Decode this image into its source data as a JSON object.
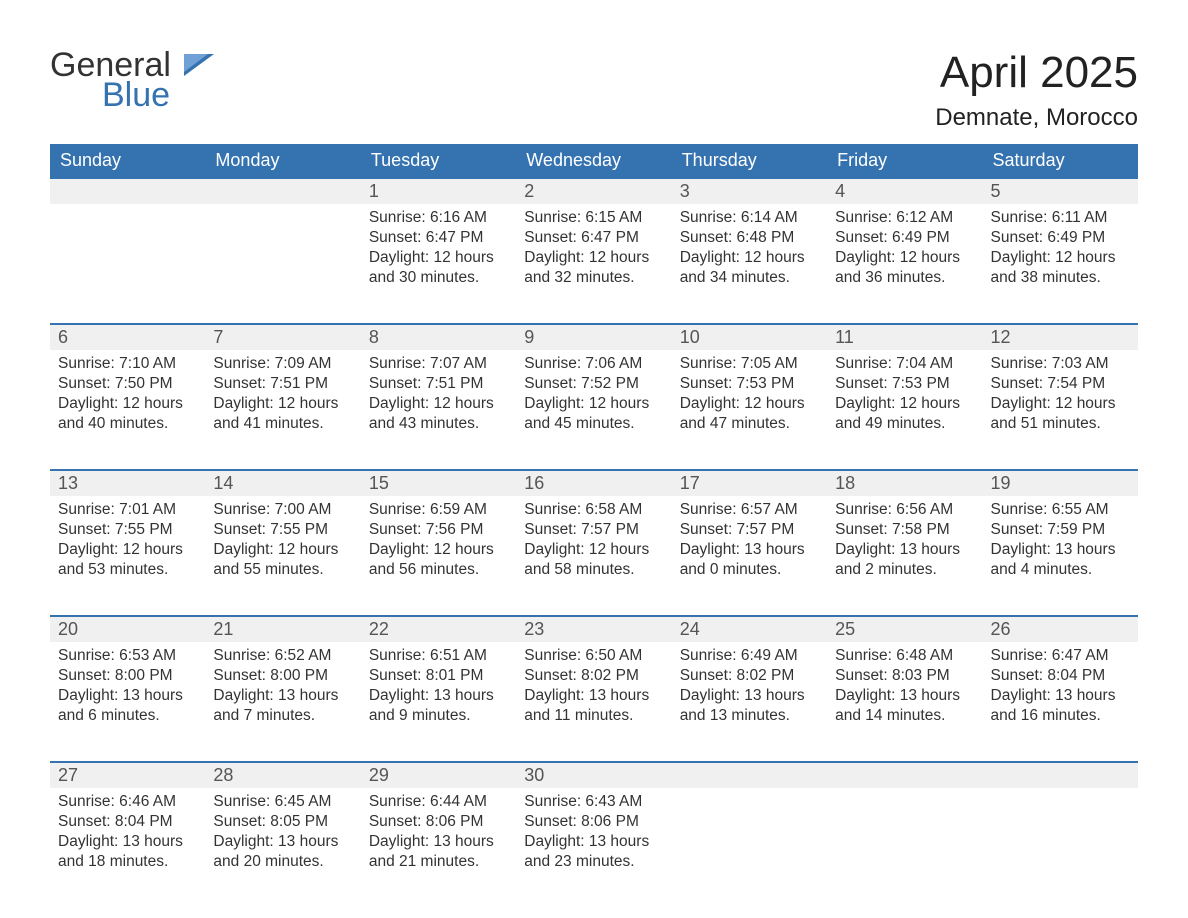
{
  "logo": {
    "word1": "General",
    "word2": "Blue"
  },
  "colors": {
    "brand_blue": "#3572b0",
    "header_bg": "#3572b0",
    "header_text": "#ffffff",
    "daynum_bg": "#f0f0f0",
    "daynum_text": "#555555",
    "body_text": "#333333",
    "page_bg": "#ffffff"
  },
  "typography": {
    "month_title_fontsize": 44,
    "location_fontsize": 24,
    "logo_fontsize": 34,
    "dayheader_fontsize": 18,
    "daynum_fontsize": 18,
    "cell_fontsize": 15.5
  },
  "title": "April 2025",
  "location": "Demnate, Morocco",
  "day_headers": [
    "Sunday",
    "Monday",
    "Tuesday",
    "Wednesday",
    "Thursday",
    "Friday",
    "Saturday"
  ],
  "weeks": [
    [
      null,
      null,
      {
        "day": "1",
        "sunrise": "6:16 AM",
        "sunset": "6:47 PM",
        "daylight": "12 hours and 30 minutes."
      },
      {
        "day": "2",
        "sunrise": "6:15 AM",
        "sunset": "6:47 PM",
        "daylight": "12 hours and 32 minutes."
      },
      {
        "day": "3",
        "sunrise": "6:14 AM",
        "sunset": "6:48 PM",
        "daylight": "12 hours and 34 minutes."
      },
      {
        "day": "4",
        "sunrise": "6:12 AM",
        "sunset": "6:49 PM",
        "daylight": "12 hours and 36 minutes."
      },
      {
        "day": "5",
        "sunrise": "6:11 AM",
        "sunset": "6:49 PM",
        "daylight": "12 hours and 38 minutes."
      }
    ],
    [
      {
        "day": "6",
        "sunrise": "7:10 AM",
        "sunset": "7:50 PM",
        "daylight": "12 hours and 40 minutes."
      },
      {
        "day": "7",
        "sunrise": "7:09 AM",
        "sunset": "7:51 PM",
        "daylight": "12 hours and 41 minutes."
      },
      {
        "day": "8",
        "sunrise": "7:07 AM",
        "sunset": "7:51 PM",
        "daylight": "12 hours and 43 minutes."
      },
      {
        "day": "9",
        "sunrise": "7:06 AM",
        "sunset": "7:52 PM",
        "daylight": "12 hours and 45 minutes."
      },
      {
        "day": "10",
        "sunrise": "7:05 AM",
        "sunset": "7:53 PM",
        "daylight": "12 hours and 47 minutes."
      },
      {
        "day": "11",
        "sunrise": "7:04 AM",
        "sunset": "7:53 PM",
        "daylight": "12 hours and 49 minutes."
      },
      {
        "day": "12",
        "sunrise": "7:03 AM",
        "sunset": "7:54 PM",
        "daylight": "12 hours and 51 minutes."
      }
    ],
    [
      {
        "day": "13",
        "sunrise": "7:01 AM",
        "sunset": "7:55 PM",
        "daylight": "12 hours and 53 minutes."
      },
      {
        "day": "14",
        "sunrise": "7:00 AM",
        "sunset": "7:55 PM",
        "daylight": "12 hours and 55 minutes."
      },
      {
        "day": "15",
        "sunrise": "6:59 AM",
        "sunset": "7:56 PM",
        "daylight": "12 hours and 56 minutes."
      },
      {
        "day": "16",
        "sunrise": "6:58 AM",
        "sunset": "7:57 PM",
        "daylight": "12 hours and 58 minutes."
      },
      {
        "day": "17",
        "sunrise": "6:57 AM",
        "sunset": "7:57 PM",
        "daylight": "13 hours and 0 minutes."
      },
      {
        "day": "18",
        "sunrise": "6:56 AM",
        "sunset": "7:58 PM",
        "daylight": "13 hours and 2 minutes."
      },
      {
        "day": "19",
        "sunrise": "6:55 AM",
        "sunset": "7:59 PM",
        "daylight": "13 hours and 4 minutes."
      }
    ],
    [
      {
        "day": "20",
        "sunrise": "6:53 AM",
        "sunset": "8:00 PM",
        "daylight": "13 hours and 6 minutes."
      },
      {
        "day": "21",
        "sunrise": "6:52 AM",
        "sunset": "8:00 PM",
        "daylight": "13 hours and 7 minutes."
      },
      {
        "day": "22",
        "sunrise": "6:51 AM",
        "sunset": "8:01 PM",
        "daylight": "13 hours and 9 minutes."
      },
      {
        "day": "23",
        "sunrise": "6:50 AM",
        "sunset": "8:02 PM",
        "daylight": "13 hours and 11 minutes."
      },
      {
        "day": "24",
        "sunrise": "6:49 AM",
        "sunset": "8:02 PM",
        "daylight": "13 hours and 13 minutes."
      },
      {
        "day": "25",
        "sunrise": "6:48 AM",
        "sunset": "8:03 PM",
        "daylight": "13 hours and 14 minutes."
      },
      {
        "day": "26",
        "sunrise": "6:47 AM",
        "sunset": "8:04 PM",
        "daylight": "13 hours and 16 minutes."
      }
    ],
    [
      {
        "day": "27",
        "sunrise": "6:46 AM",
        "sunset": "8:04 PM",
        "daylight": "13 hours and 18 minutes."
      },
      {
        "day": "28",
        "sunrise": "6:45 AM",
        "sunset": "8:05 PM",
        "daylight": "13 hours and 20 minutes."
      },
      {
        "day": "29",
        "sunrise": "6:44 AM",
        "sunset": "8:06 PM",
        "daylight": "13 hours and 21 minutes."
      },
      {
        "day": "30",
        "sunrise": "6:43 AM",
        "sunset": "8:06 PM",
        "daylight": "13 hours and 23 minutes."
      },
      null,
      null,
      null
    ]
  ],
  "labels": {
    "sunrise": "Sunrise: ",
    "sunset": "Sunset: ",
    "daylight": "Daylight: "
  }
}
